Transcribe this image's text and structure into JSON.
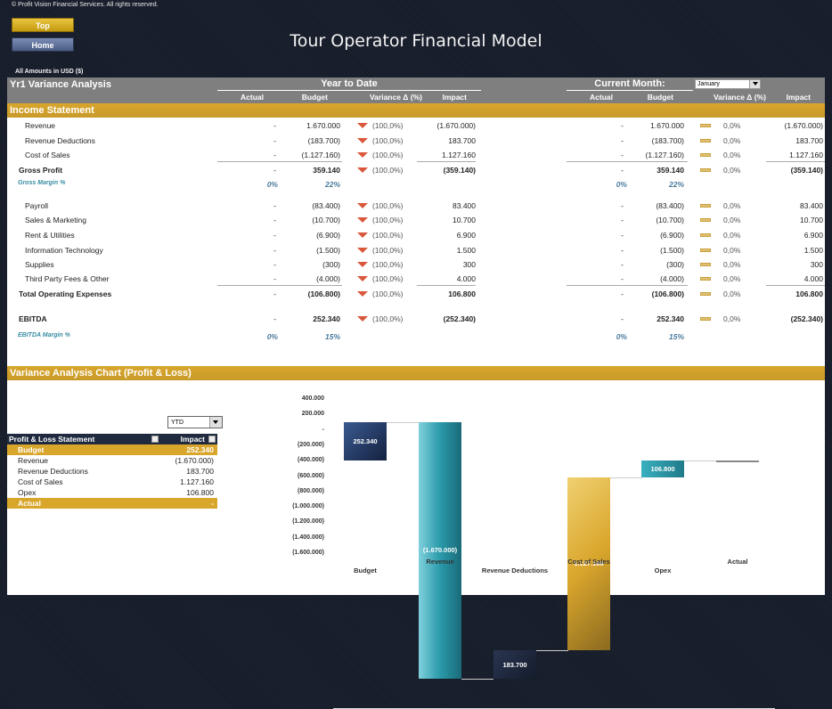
{
  "header": {
    "copyright": "© Profit Vision Financial Services. All rights reserved.",
    "top_button": "Top",
    "home_button": "Home",
    "title": "Tour Operator Financial Model",
    "amounts_note": "All Amounts in  USD ($)"
  },
  "analysis": {
    "title": "Yr1 Variance Analysis",
    "ytd_label": "Year to Date",
    "cm_label": "Current Month:",
    "month_selected": "January",
    "columns": {
      "actual": "Actual",
      "budget": "Budget",
      "variance": "Variance Δ  (%)",
      "impact": "Impact"
    }
  },
  "income_statement": {
    "section_title": "Income Statement",
    "rows": [
      {
        "label": "Revenue",
        "ytd_actual": "-",
        "ytd_budget": "1.670.000",
        "ytd_var": "(100,0%)",
        "ytd_impact": "(1.670.000)",
        "cm_actual": "-",
        "cm_budget": "1.670.000",
        "cm_var": "0,0%",
        "cm_impact": "(1.670.000)"
      },
      {
        "label": "Revenue Deductions",
        "ytd_actual": "-",
        "ytd_budget": "(183.700)",
        "ytd_var": "(100,0%)",
        "ytd_impact": "183.700",
        "cm_actual": "-",
        "cm_budget": "(183.700)",
        "cm_var": "0,0%",
        "cm_impact": "183.700"
      },
      {
        "label": "Cost of Sales",
        "ytd_actual": "-",
        "ytd_budget": "(1.127.160)",
        "ytd_var": "(100,0%)",
        "ytd_impact": "1.127.160",
        "cm_actual": "-",
        "cm_budget": "(1.127.160)",
        "cm_var": "0,0%",
        "cm_impact": "1.127.160"
      },
      {
        "label": "Gross Profit",
        "ytd_actual": "-",
        "ytd_budget": "359.140",
        "ytd_var": "(100,0%)",
        "ytd_impact": "(359.140)",
        "cm_actual": "-",
        "cm_budget": "359.140",
        "cm_var": "0,0%",
        "cm_impact": "(359.140)"
      },
      {
        "label": "Payroll",
        "ytd_actual": "-",
        "ytd_budget": "(83.400)",
        "ytd_var": "(100,0%)",
        "ytd_impact": "83.400",
        "cm_actual": "-",
        "cm_budget": "(83.400)",
        "cm_var": "0,0%",
        "cm_impact": "83.400"
      },
      {
        "label": "Sales & Marketing",
        "ytd_actual": "-",
        "ytd_budget": "(10.700)",
        "ytd_var": "(100,0%)",
        "ytd_impact": "10.700",
        "cm_actual": "-",
        "cm_budget": "(10.700)",
        "cm_var": "0,0%",
        "cm_impact": "10.700"
      },
      {
        "label": "Rent & Utilities",
        "ytd_actual": "-",
        "ytd_budget": "(6.900)",
        "ytd_var": "(100,0%)",
        "ytd_impact": "6.900",
        "cm_actual": "-",
        "cm_budget": "(6.900)",
        "cm_var": "0,0%",
        "cm_impact": "6.900"
      },
      {
        "label": "Information Technology",
        "ytd_actual": "-",
        "ytd_budget": "(1.500)",
        "ytd_var": "(100,0%)",
        "ytd_impact": "1.500",
        "cm_actual": "-",
        "cm_budget": "(1.500)",
        "cm_var": "0,0%",
        "cm_impact": "1.500"
      },
      {
        "label": "Supplies",
        "ytd_actual": "-",
        "ytd_budget": "(300)",
        "ytd_var": "(100,0%)",
        "ytd_impact": "300",
        "cm_actual": "-",
        "cm_budget": "(300)",
        "cm_var": "0,0%",
        "cm_impact": "300"
      },
      {
        "label": "Third Party Fees & Other",
        "ytd_actual": "-",
        "ytd_budget": "(4.000)",
        "ytd_var": "(100,0%)",
        "ytd_impact": "4.000",
        "cm_actual": "-",
        "cm_budget": "(4.000)",
        "cm_var": "0,0%",
        "cm_impact": "4.000"
      },
      {
        "label": "Total Operating Expenses",
        "ytd_actual": "-",
        "ytd_budget": "(106.800)",
        "ytd_var": "(100,0%)",
        "ytd_impact": "106.800",
        "cm_actual": "-",
        "cm_budget": "(106.800)",
        "cm_var": "0,0%",
        "cm_impact": "106.800"
      },
      {
        "label": "EBITDA",
        "ytd_actual": "-",
        "ytd_budget": "252.340",
        "ytd_var": "(100,0%)",
        "ytd_impact": "(252.340)",
        "cm_actual": "-",
        "cm_budget": "252.340",
        "cm_var": "0,0%",
        "cm_impact": "(252.340)"
      }
    ],
    "gross_margin": {
      "label": "Gross Margin %",
      "ytd_actual": "0%",
      "ytd_budget": "22%",
      "cm_actual": "0%",
      "cm_budget": "22%"
    },
    "ebitda_margin": {
      "label": "EBITDA Margin %",
      "ytd_actual": "0%",
      "ytd_budget": "15%",
      "cm_actual": "0%",
      "cm_budget": "15%"
    }
  },
  "chart_section": {
    "title": "Variance Analysis Chart (Profit & Loss)",
    "period_selected": "YTD",
    "table": {
      "col1": "Profit & Loss Statement",
      "col2": "Impact",
      "rows": [
        {
          "label": "Budget",
          "value": "252.340"
        },
        {
          "label": "Revenue",
          "value": "(1.670.000)"
        },
        {
          "label": "Revenue Deductions",
          "value": "183.700"
        },
        {
          "label": "Cost of Sales",
          "value": "1.127.160"
        },
        {
          "label": "Opex",
          "value": "106.800"
        },
        {
          "label": "Actual",
          "value": "-"
        }
      ]
    }
  },
  "chart_data": {
    "type": "bar",
    "subtype": "waterfall",
    "title": "Variance Analysis Chart (Profit & Loss)",
    "categories": [
      "Budget",
      "Revenue",
      "Revenue Deductions",
      "Cost of Sales",
      "Opex",
      "Actual"
    ],
    "values": [
      252340,
      -1670000,
      183700,
      1127160,
      106800,
      0
    ],
    "labels": [
      "252.340",
      "(1.670.000)",
      "183.700",
      "1.127.160",
      "106.800",
      ""
    ],
    "yticks": [
      "400.000",
      "200.000",
      "-",
      "(200.000)",
      "(400.000)",
      "(600.000)",
      "(800.000)",
      "(1.000.000)",
      "(1.200.000)",
      "(1.400.000)",
      "(1.600.000)"
    ],
    "ylim": [
      -1600000,
      400000
    ],
    "colors": {
      "budget": "#1f3460",
      "revenue": "#2a9aaa",
      "revenue_deductions": "#1f2a3f",
      "cost_of_sales": "#d9a62c",
      "opex": "#2a8a9a"
    }
  }
}
